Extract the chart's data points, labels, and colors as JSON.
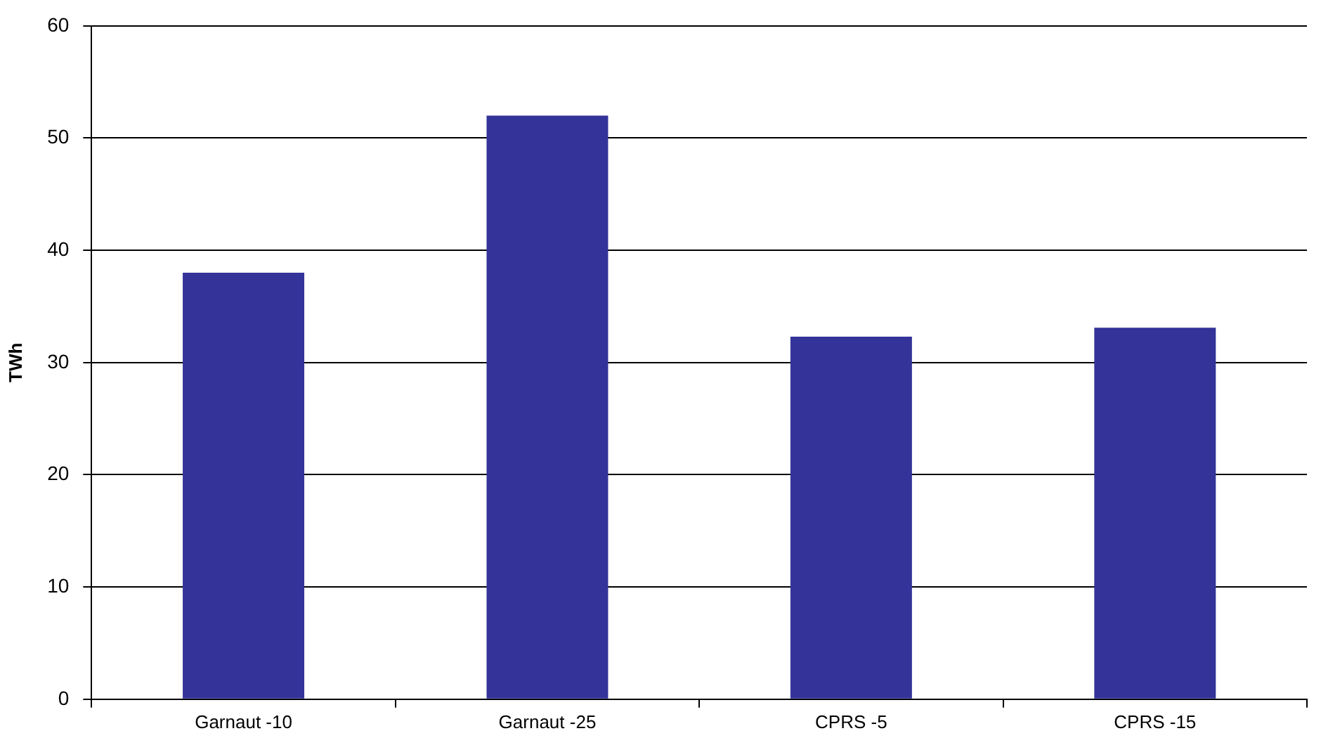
{
  "chart_data": {
    "type": "bar",
    "ylabel": "TWh",
    "categories": [
      "Garnaut -10",
      "Garnaut -25",
      "CPRS -5",
      "CPRS -15"
    ],
    "values": [
      38,
      52,
      32.3,
      33.1
    ],
    "color": "#333399",
    "ylim": [
      0,
      60
    ],
    "yticks": [
      0,
      10,
      20,
      30,
      40,
      50,
      60
    ],
    "grid": "y",
    "legend": false
  }
}
